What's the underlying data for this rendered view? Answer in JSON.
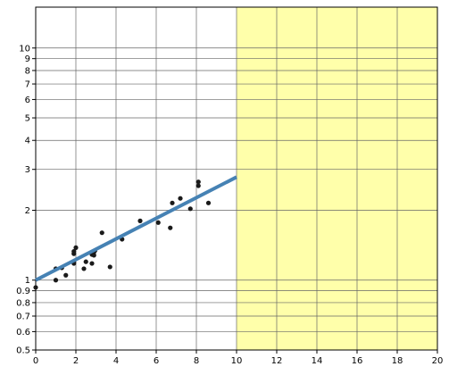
{
  "chart_data": {
    "type": "scatter",
    "title": "",
    "xlabel": "",
    "ylabel": "",
    "xlim": [
      0,
      20
    ],
    "ylim": [
      0.5,
      15
    ],
    "y_scale": "log",
    "grid": true,
    "x_ticks": [
      0,
      2,
      4,
      6,
      8,
      10,
      12,
      14,
      16,
      18,
      20
    ],
    "y_ticks": [
      0.5,
      0.6,
      0.7,
      0.8,
      0.9,
      1,
      2,
      3,
      4,
      5,
      6,
      7,
      8,
      9,
      10
    ],
    "highlight_region": {
      "x_from": 10,
      "x_to": 20,
      "color": "#ffffaa"
    },
    "points": [
      {
        "x": 0.0,
        "y": 0.93
      },
      {
        "x": 1.0,
        "y": 1.0
      },
      {
        "x": 1.0,
        "y": 1.12
      },
      {
        "x": 1.3,
        "y": 1.13
      },
      {
        "x": 1.5,
        "y": 1.05
      },
      {
        "x": 1.9,
        "y": 1.18
      },
      {
        "x": 1.9,
        "y": 1.2
      },
      {
        "x": 1.9,
        "y": 1.3
      },
      {
        "x": 1.9,
        "y": 1.33
      },
      {
        "x": 2.0,
        "y": 1.38
      },
      {
        "x": 2.4,
        "y": 1.12
      },
      {
        "x": 2.5,
        "y": 1.2
      },
      {
        "x": 2.8,
        "y": 1.18
      },
      {
        "x": 2.8,
        "y": 1.29
      },
      {
        "x": 2.85,
        "y": 1.31
      },
      {
        "x": 2.9,
        "y": 1.28
      },
      {
        "x": 2.9,
        "y": 1.32
      },
      {
        "x": 2.95,
        "y": 1.34
      },
      {
        "x": 3.3,
        "y": 1.6
      },
      {
        "x": 3.7,
        "y": 1.14
      },
      {
        "x": 4.3,
        "y": 1.5
      },
      {
        "x": 5.2,
        "y": 1.8
      },
      {
        "x": 6.1,
        "y": 1.77
      },
      {
        "x": 6.7,
        "y": 1.68
      },
      {
        "x": 6.8,
        "y": 2.15
      },
      {
        "x": 7.2,
        "y": 2.25
      },
      {
        "x": 7.7,
        "y": 2.03
      },
      {
        "x": 8.1,
        "y": 2.55
      },
      {
        "x": 8.1,
        "y": 2.65
      },
      {
        "x": 8.6,
        "y": 2.15
      }
    ],
    "fit_line": {
      "x": [
        0,
        10
      ],
      "y": [
        1.0,
        2.78
      ],
      "color": "#4682b4"
    },
    "colors": {
      "points": "#1a1a1a",
      "grid": "#666666",
      "highlight": "#ffffaa"
    }
  }
}
